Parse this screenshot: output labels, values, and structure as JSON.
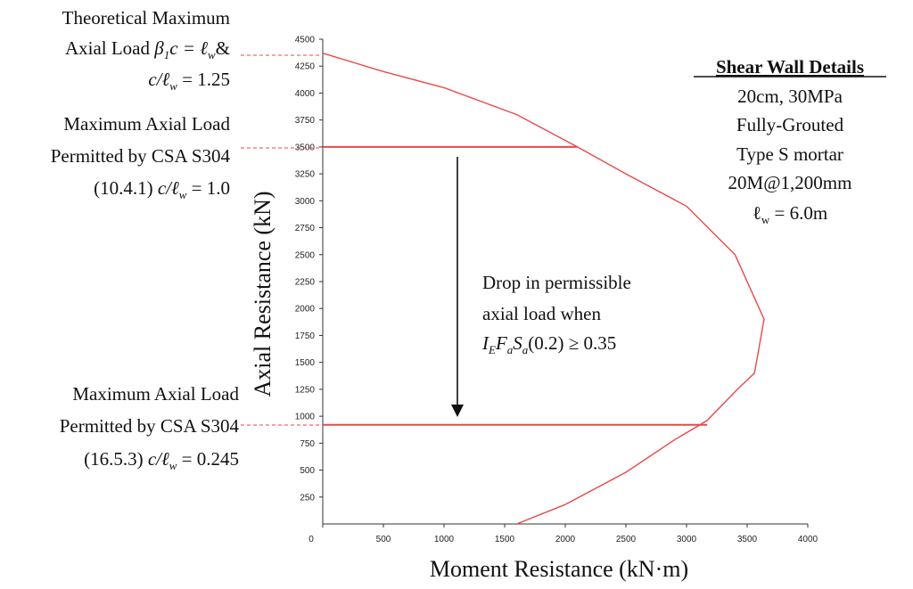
{
  "chart_data": {
    "type": "line",
    "xlabel": "Moment Resistance (kN·m)",
    "ylabel": "Axial Resistance (kN)",
    "xlim": [
      0,
      4000
    ],
    "ylim": [
      0,
      4500
    ],
    "x_ticks": [
      "0",
      "500",
      "1000",
      "1500",
      "2000",
      "2500",
      "3000",
      "3500",
      "4000"
    ],
    "y_ticks": [
      "250",
      "500",
      "750",
      "1000",
      "1250",
      "1500",
      "1750",
      "2000",
      "2250",
      "2500",
      "2750",
      "3000",
      "3250",
      "3500",
      "3750",
      "4000",
      "4250",
      "4500"
    ],
    "grid": false,
    "series": [
      {
        "color": "#e84a4a",
        "points": [
          [
            1600,
            0
          ],
          [
            2000,
            180
          ],
          [
            2500,
            480
          ],
          [
            2900,
            780
          ],
          [
            3170,
            960
          ],
          [
            3420,
            1250
          ],
          [
            3560,
            1400
          ],
          [
            3640,
            1900
          ],
          [
            3400,
            2500
          ],
          [
            3000,
            2950
          ],
          [
            2500,
            3250
          ],
          [
            2100,
            3500
          ],
          [
            1600,
            3800
          ],
          [
            1000,
            4050
          ],
          [
            500,
            4200
          ],
          [
            0,
            4370
          ]
        ]
      }
    ],
    "hlines": [
      {
        "y": 3500,
        "x_end": 2100,
        "color": "#e84a4a"
      },
      {
        "y": 920,
        "x_end": 3170,
        "color": "#e84a4a"
      }
    ]
  },
  "annotations": {
    "theoretical": {
      "line1": "Theoretical Maximum",
      "line2_a": "Axial Load ",
      "line2_b": "β",
      "line2_c": "1",
      "line2_d": "c = ℓ",
      "line2_e": "w",
      "line2_f": "&",
      "line3_a": "c/ℓ",
      "line3_b": "w",
      "line3_c": " = 1.25"
    },
    "csa_1041": {
      "line1": "Maximum Axial Load",
      "line2": "Permitted by CSA S304",
      "line3_a": "(10.4.1) ",
      "line3_b": "c/ℓ",
      "line3_c": "w",
      "line3_d": " = 1.0"
    },
    "csa_1653": {
      "line1": "Maximum Axial Load",
      "line2": "Permitted by CSA S304",
      "line3_a": "(16.5.3) ",
      "line3_b": "c/ℓ",
      "line3_c": "w",
      "line3_d": " = 0.245"
    },
    "drop": {
      "line1": "Drop in permissible",
      "line2": "axial load when",
      "line3_a": "I",
      "line3_b": "E",
      "line3_c": "F",
      "line3_d": "a",
      "line3_e": "S",
      "line3_f": "a",
      "line3_g": "(0.2) ≥ 0.35"
    }
  },
  "details": {
    "title": "Shear Wall Details",
    "l1": "20cm, 30MPa",
    "l2": "Fully-Grouted",
    "l3": "Type S mortar",
    "l4": "20M@1,200mm",
    "l5_a": "ℓ",
    "l5_b": "w",
    "l5_c": " = 6.0m"
  },
  "colors": {
    "curve": "#e84a4a",
    "axis": "#333333"
  }
}
